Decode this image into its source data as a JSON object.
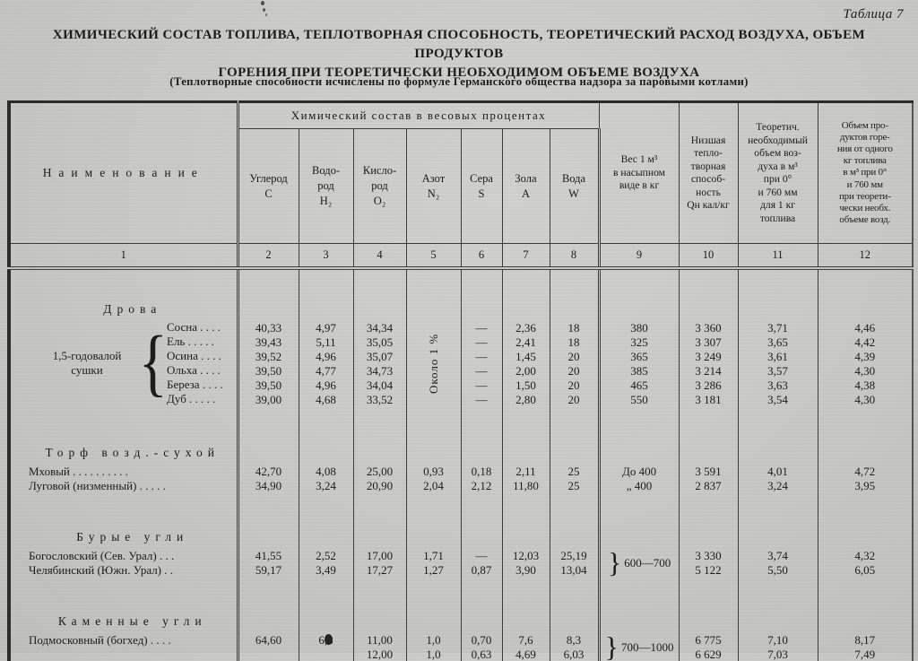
{
  "page": {
    "table_label": "Таблица 7",
    "title": "ХИМИЧЕСКИЙ СОСТАВ ТОПЛИВА, ТЕПЛОТВОРНАЯ СПОСОБНОСТЬ, ТЕОРЕТИЧЕСКИЙ РАСХОД ВОЗДУХА, ОБЪЕМ ПРОДУКТОВ\nГОРЕНИЯ ПРИ ТЕОРЕТИЧЕСКИ НЕОБХОДИМОМ ОБЪЕМЕ ВОЗДУХА",
    "subtitle": "(Теплотворные способности исчислены по формуле Германского общества надзора за паровыми котлами)"
  },
  "header": {
    "name_col": "Наименование",
    "chem_group": "Химический состав в весовых процентах",
    "chem_cols": [
      "Углерод\nС",
      "Водо-\nрод\nH₂",
      "Кисло-\nрод\nO₂",
      "Азот\nN₂",
      "Сера\nS",
      "Зола\nA",
      "Вода\nW"
    ],
    "weight_col": "Вес 1 м³\nв насыпном\nвиде в кг",
    "q_col": "Низшая\nтепло-\nтворная\nспособ-\nность\nQн кал/кг",
    "air_col": "Теоретич.\nнеобходимый\nобъем воз-\nдуха в м³\nпри 0°\nи 760 мм\nдля 1 кг\nтоплива",
    "vol_col": "Объем про-\nдуктов горе-\nния от одного\nкг топлива\nв м³ при 0°\nи 760 мм\nпри теорети-\nчески необх.\nобъеме возд.",
    "col_numbers": [
      "1",
      "2",
      "3",
      "4",
      "5",
      "6",
      "7",
      "8",
      "9",
      "10",
      "11",
      "12"
    ]
  },
  "body": {
    "sections": [
      {
        "heading": "Дрова",
        "group": {
          "label": "1,5-годовалой\nсушки",
          "brace": "{",
          "nitrogen_note": "Около 1 %"
        },
        "rows": [
          {
            "name": "Сосна  .  .  .  .",
            "c": "40,33",
            "h": "4,97",
            "o": "34,34",
            "s": "—",
            "a": "2,36",
            "w": "18",
            "weight": "380",
            "q": "3 360",
            "air": "3,71",
            "vol": "4,46"
          },
          {
            "name": "Ель  .  .  .  .  .",
            "c": "39,43",
            "h": "5,11",
            "o": "35,05",
            "s": "—",
            "a": "2,41",
            "w": "18",
            "weight": "325",
            "q": "3 307",
            "air": "3,65",
            "vol": "4,42"
          },
          {
            "name": "Осина  .  .  .  .",
            "c": "39,52",
            "h": "4,96",
            "o": "35,07",
            "s": "—",
            "a": "1,45",
            "w": "20",
            "weight": "365",
            "q": "3 249",
            "air": "3,61",
            "vol": "4,39"
          },
          {
            "name": "Ольха  .  .  .  .",
            "c": "39,50",
            "h": "4,77",
            "o": "34,73",
            "s": "—",
            "a": "2,00",
            "w": "20",
            "weight": "385",
            "q": "3 214",
            "air": "3,57",
            "vol": "4,30"
          },
          {
            "name": "Береза  .  .  .  .",
            "c": "39,50",
            "h": "4,96",
            "o": "34,04",
            "s": "—",
            "a": "1,50",
            "w": "20",
            "weight": "465",
            "q": "3 286",
            "air": "3,63",
            "vol": "4,38"
          },
          {
            "name": "Дуб  .  .  .  .  .",
            "c": "39,00",
            "h": "4,68",
            "o": "33,52",
            "s": "—",
            "a": "2,80",
            "w": "20",
            "weight": "550",
            "q": "3 181",
            "air": "3,54",
            "vol": "4,30"
          }
        ]
      },
      {
        "heading": "Торф возд.-сухой",
        "rows": [
          {
            "name": "Мховый  .  .  .  .  .  .  .  .  .  .",
            "c": "42,70",
            "h": "4,08",
            "o": "25,00",
            "n": "0,93",
            "s": "0,18",
            "a": "2,11",
            "w": "25",
            "weight": "До 400",
            "q": "3 591",
            "air": "4,01",
            "vol": "4,72"
          },
          {
            "name": "Луговой (низменный) .  .  .  .  .",
            "c": "34,90",
            "h": "3,24",
            "o": "20,90",
            "n": "2,04",
            "s": "2,12",
            "a": "11,80",
            "w": "25",
            "weight": "„  400",
            "q": "2 837",
            "air": "3,24",
            "vol": "3,95"
          }
        ]
      },
      {
        "heading": "Бурые угли",
        "weight_group": {
          "brace": "}",
          "range": "600—700"
        },
        "rows": [
          {
            "name": "Богословский (Сев. Урал) .  .  .",
            "c": "41,55",
            "h": "2,52",
            "o": "17,00",
            "n": "1,71",
            "s": "—",
            "a": "12,03",
            "w": "25,19",
            "q": "3 330",
            "air": "3,74",
            "vol": "4,32"
          },
          {
            "name": "Челябинский (Южн. Урал)  .  .",
            "c": "59,17",
            "h": "3,49",
            "o": "17,27",
            "n": "1,27",
            "s": "0,87",
            "a": "3,90",
            "w": "13,04",
            "q": "5 122",
            "air": "5,50",
            "vol": "6,05"
          }
        ]
      },
      {
        "heading": "Каменные угли",
        "weight_group": {
          "brace": "}",
          "range": "700—1000"
        },
        "rows": [
          {
            "name": "Подмосковный (богхед) .  .  .  .",
            "c": "64,60",
            "h": "6,8",
            "o": "11,00",
            "n": "1,0",
            "s": "0,70",
            "a": "7,6",
            "w": "8,3",
            "q": "6 775",
            "air": "7,10",
            "vol": "8,17"
          },
          {
            "name": "",
            "c": "",
            "h": "",
            "o": "12,00",
            "n": "1,0",
            "s": "0,63",
            "a": "4,69",
            "w": "6,03",
            "q": "6 629",
            "air": "7,03",
            "vol": "7,49"
          }
        ]
      }
    ]
  }
}
